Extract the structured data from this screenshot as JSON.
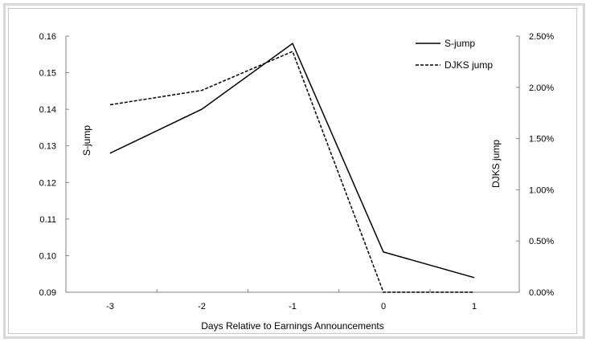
{
  "chart_data": {
    "type": "line",
    "title": "",
    "xlabel": "Days Relative to Earnings Announcements",
    "ylabel": "S-jump",
    "ylabel_right": "DJKS jump",
    "categories": [
      "-3",
      "-2",
      "-1",
      "0",
      "1"
    ],
    "series": [
      {
        "name": "S-jump",
        "axis": "left",
        "style": "solid",
        "values": [
          0.128,
          0.14,
          0.158,
          0.101,
          0.094
        ]
      },
      {
        "name": "DJKS jump",
        "axis": "right",
        "style": "dashed",
        "values": [
          0.0183,
          0.0197,
          0.0235,
          0.0,
          0.0
        ]
      }
    ],
    "ylim": [
      0.09,
      0.16
    ],
    "ylim_right": [
      0.0,
      0.025
    ],
    "yticks": [
      "0.16",
      "0.15",
      "0.14",
      "0.13",
      "0.12",
      "0.11",
      "0.10",
      "0.09"
    ],
    "yticks_right": [
      "2.50%",
      "2.00%",
      "1.50%",
      "1.00%",
      "0.50%",
      "0.00%"
    ],
    "legend": {
      "position": "upper right",
      "entries": [
        "S-jump",
        "DJKS jump"
      ]
    },
    "grid": false
  }
}
